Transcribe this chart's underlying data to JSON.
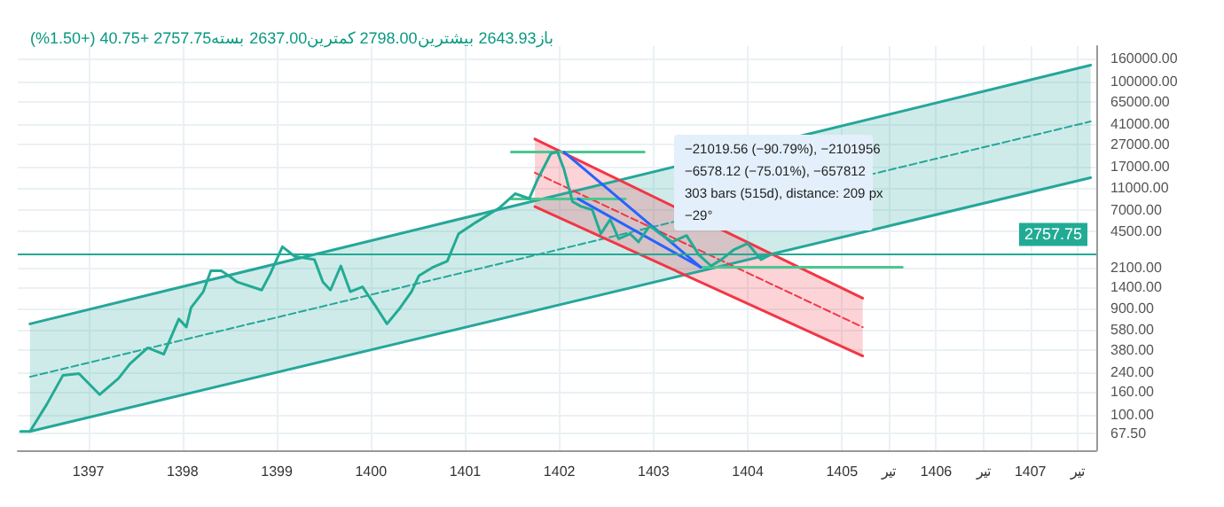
{
  "chart_data": {
    "type": "line",
    "subtitle": "باز2643.93 بیشترین2798.00 کمترین2637.00 بسته2757.75 +40.75 (+1.50%)",
    "log": "y",
    "grid": true,
    "marker": "none",
    "line_style": "solid",
    "xlim": [
      1396.25,
      1407.7
    ],
    "xticks": [
      1397,
      1398,
      1399,
      1400,
      1401,
      1402,
      1403,
      1404,
      1405,
      {
        "value": 1405.5,
        "label": "تیر"
      },
      1406,
      {
        "value": 1406.5,
        "label": "تیر"
      },
      1407,
      {
        "value": 1407.5,
        "label": "تیر"
      }
    ],
    "ylim": [
      48,
      208000
    ],
    "yticks": [
      {
        "value": 67.5,
        "label": "67.50"
      },
      {
        "value": 100,
        "label": "100.00"
      },
      {
        "value": 160,
        "label": "160.00"
      },
      {
        "value": 240,
        "label": "240.00"
      },
      {
        "value": 380,
        "label": "380.00"
      },
      {
        "value": 580,
        "label": "580.00"
      },
      {
        "value": 900,
        "label": "900.00"
      },
      {
        "value": 1400,
        "label": "1400.00"
      },
      {
        "value": 2100,
        "label": "2100.00"
      },
      {
        "value": 4500,
        "label": "4500.00"
      },
      {
        "value": 7000,
        "label": "7000.00"
      },
      {
        "value": 11000,
        "label": "11000.00"
      },
      {
        "value": 17000,
        "label": "17000.00"
      },
      {
        "value": 27000,
        "label": "27000.00"
      },
      {
        "value": 41000,
        "label": "41000.00"
      },
      {
        "value": 65000,
        "label": "65000.00"
      },
      {
        "value": 100000,
        "label": "100000.00"
      },
      {
        "value": 160000,
        "label": "160000.00"
      }
    ],
    "ref_lines": [
      {
        "axis": "y",
        "value": 2757.75,
        "label": "2757.75",
        "color": "#22ab94"
      }
    ],
    "annotations": [
      "−21019.56 (−90.79%), −2101956",
      "−6578.12 (−75.01%), −657812",
      "303 bars (515d), distance: 209 px",
      "−29°"
    ],
    "series": [
      {
        "color": "#26a69a",
        "line_style": "dashed",
        "x": [
          1396.38,
          1407.64
        ],
        "values": [
          220,
          43600
        ],
        "lower": [
          71,
          13600
        ],
        "upper": [
          659,
          140000
        ]
      },
      {
        "color": "#26a69a",
        "x": [
          1396.38,
          1407.64
        ],
        "values": [
          71,
          13600
        ]
      },
      {
        "color": "#26a69a",
        "x": [
          1396.38,
          1407.64
        ],
        "values": [
          659,
          140000
        ]
      },
      {
        "color": "#f23645",
        "line_style": "dashed",
        "x": [
          1401.74,
          1405.22
        ],
        "values": [
          15100,
          616
        ],
        "lower": [
          7480,
          339
        ],
        "upper": [
          30300,
          1122
        ]
      },
      {
        "color": "#f23645",
        "x": [
          1401.74,
          1405.22
        ],
        "values": [
          7480,
          339
        ]
      },
      {
        "color": "#f23645",
        "x": [
          1401.74,
          1405.22
        ],
        "values": [
          30300,
          1122
        ]
      },
      {
        "color": "#4cc790",
        "x": [
          1401.49,
          1402.9
        ],
        "values": [
          23150,
          23150
        ]
      },
      {
        "color": "#4cc790",
        "x": [
          1401.49,
          1402.7
        ],
        "values": [
          8770,
          8770
        ]
      },
      {
        "color": "#4cc790",
        "x": [
          1403.5,
          1405.64
        ],
        "values": [
          2130,
          2130
        ]
      },
      {
        "color": "#2962ff",
        "x": [
          1402.05,
          1403.5
        ],
        "values": [
          23150,
          2130
        ]
      },
      {
        "color": "#2962ff",
        "x": [
          1402.2,
          1403.5
        ],
        "values": [
          8770,
          2130
        ]
      },
      {
        "color": "#22ab94",
        "x": [
          1396.28,
          1396.38,
          1396.56,
          1396.73,
          1396.9,
          1397.12,
          1397.32,
          1397.44,
          1397.63,
          1397.8,
          1397.96,
          1398.04,
          1398.09,
          1398.22,
          1398.3,
          1398.41,
          1398.49,
          1398.58,
          1398.84,
          1398.93,
          1399.06,
          1399.19,
          1399.4,
          1399.49,
          1399.57,
          1399.68,
          1399.78,
          1399.91,
          1400.06,
          1400.17,
          1400.31,
          1400.43,
          1400.51,
          1400.65,
          1400.81,
          1400.93,
          1401.11,
          1401.36,
          1401.53,
          1401.68,
          1401.77,
          1401.91,
          1401.98,
          1402.05,
          1402.14,
          1402.23,
          1402.35,
          1402.44,
          1402.54,
          1402.63,
          1402.75,
          1402.84,
          1402.96,
          1403.07,
          1403.2,
          1403.35,
          1403.48,
          1403.61,
          1403.72,
          1403.85,
          1404.0,
          1404.14,
          1404.24
        ],
        "values": [
          71,
          71,
          125,
          227,
          235,
          152,
          213,
          287,
          401,
          351,
          729,
          618,
          920,
          1283,
          1978,
          1978,
          1790,
          1567,
          1327,
          1850,
          3258,
          2667,
          2495,
          1567,
          1327,
          2188,
          1283,
          1419,
          920,
          659,
          920,
          1283,
          1790,
          2113,
          2415,
          4256,
          5370,
          7244,
          9772,
          8831,
          13183,
          22440,
          23220,
          16100,
          8279,
          7500,
          7000,
          4256,
          5741,
          3846,
          4256,
          3600,
          5023,
          4256,
          3600,
          4111,
          2760,
          2188,
          2495,
          3048,
          3483,
          2495,
          2757.75
        ]
      }
    ]
  }
}
